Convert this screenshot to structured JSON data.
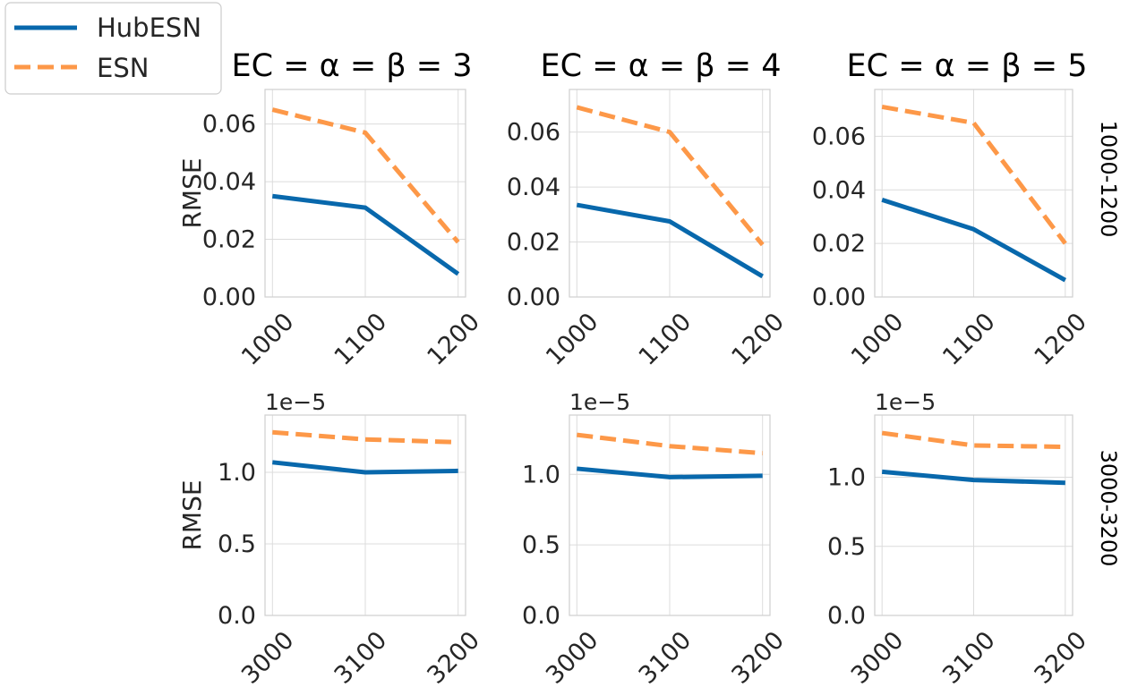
{
  "legend": {
    "entries": [
      {
        "label": "HubESN",
        "color": "#0868ac",
        "style": "solid"
      },
      {
        "label": "ESN",
        "color": "#fd9848",
        "style": "dashed"
      }
    ]
  },
  "column_titles": [
    "EC = α = β = 3",
    "EC = α = β = 4",
    "EC = α = β = 5"
  ],
  "row_labels": [
    "1000-1200",
    "3000-3200"
  ],
  "ylabel": "RMSE",
  "offset_label": "1e−5",
  "chart_data": [
    {
      "type": "line",
      "title": "EC = α = β = 3",
      "row_label": "1000-1200",
      "ylabel": "RMSE",
      "x": [
        1000,
        1100,
        1200
      ],
      "xticks": [
        "1000",
        "1100",
        "1200"
      ],
      "yticks": [
        "0.00",
        "0.02",
        "0.04",
        "0.06"
      ],
      "ytick_values": [
        0,
        0.02,
        0.04,
        0.06
      ],
      "ylim": [
        0,
        0.072
      ],
      "series": [
        {
          "name": "HubESN",
          "values": [
            0.035,
            0.031,
            0.008
          ]
        },
        {
          "name": "ESN",
          "values": [
            0.065,
            0.057,
            0.019
          ]
        }
      ]
    },
    {
      "type": "line",
      "title": "EC = α = β = 4",
      "row_label": "1000-1200",
      "ylabel": "",
      "x": [
        1000,
        1100,
        1200
      ],
      "xticks": [
        "1000",
        "1100",
        "1200"
      ],
      "yticks": [
        "0.00",
        "0.02",
        "0.04",
        "0.06"
      ],
      "ytick_values": [
        0,
        0.02,
        0.04,
        0.06
      ],
      "ylim": [
        0,
        0.0755
      ],
      "series": [
        {
          "name": "HubESN",
          "values": [
            0.0335,
            0.0275,
            0.0075
          ]
        },
        {
          "name": "ESN",
          "values": [
            0.069,
            0.06,
            0.019
          ]
        }
      ]
    },
    {
      "type": "line",
      "title": "EC = α = β = 5",
      "row_label": "1000-1200",
      "ylabel": "",
      "x": [
        1000,
        1100,
        1200
      ],
      "xticks": [
        "1000",
        "1100",
        "1200"
      ],
      "yticks": [
        "0.00",
        "0.02",
        "0.04",
        "0.06"
      ],
      "ytick_values": [
        0,
        0.02,
        0.04,
        0.06
      ],
      "ylim": [
        0,
        0.0775
      ],
      "series": [
        {
          "name": "HubESN",
          "values": [
            0.0363,
            0.0253,
            0.0063
          ]
        },
        {
          "name": "ESN",
          "values": [
            0.071,
            0.065,
            0.02
          ]
        }
      ]
    },
    {
      "type": "line",
      "title": "",
      "row_label": "3000-3200",
      "ylabel": "RMSE",
      "y_scale_label": "1e−5",
      "x": [
        3000,
        3100,
        3200
      ],
      "xticks": [
        "3000",
        "3100",
        "3200"
      ],
      "yticks": [
        "0.0",
        "0.5",
        "1.0"
      ],
      "ytick_values": [
        0,
        0.5,
        1.0
      ],
      "ylim": [
        0,
        1.4
      ],
      "series": [
        {
          "name": "HubESN",
          "values": [
            1.07,
            1.0,
            1.01
          ]
        },
        {
          "name": "ESN",
          "values": [
            1.28,
            1.23,
            1.21
          ]
        }
      ]
    },
    {
      "type": "line",
      "title": "",
      "row_label": "3000-3200",
      "ylabel": "",
      "y_scale_label": "1e−5",
      "x": [
        3000,
        3100,
        3200
      ],
      "xticks": [
        "3000",
        "3100",
        "3200"
      ],
      "yticks": [
        "0.0",
        "0.5",
        "1.0"
      ],
      "ytick_values": [
        0,
        0.5,
        1.0
      ],
      "ylim": [
        0,
        1.42
      ],
      "series": [
        {
          "name": "HubESN",
          "values": [
            1.04,
            0.98,
            0.99
          ]
        },
        {
          "name": "ESN",
          "values": [
            1.28,
            1.2,
            1.15
          ]
        }
      ]
    },
    {
      "type": "line",
      "title": "",
      "row_label": "3000-3200",
      "ylabel": "",
      "y_scale_label": "1e−5",
      "x": [
        3000,
        3100,
        3200
      ],
      "xticks": [
        "3000",
        "3100",
        "3200"
      ],
      "yticks": [
        "0.0",
        "0.5",
        "1.0"
      ],
      "ytick_values": [
        0,
        0.5,
        1.0
      ],
      "ylim": [
        0,
        1.45
      ],
      "series": [
        {
          "name": "HubESN",
          "values": [
            1.04,
            0.98,
            0.96
          ]
        },
        {
          "name": "ESN",
          "values": [
            1.32,
            1.23,
            1.22
          ]
        }
      ]
    }
  ]
}
